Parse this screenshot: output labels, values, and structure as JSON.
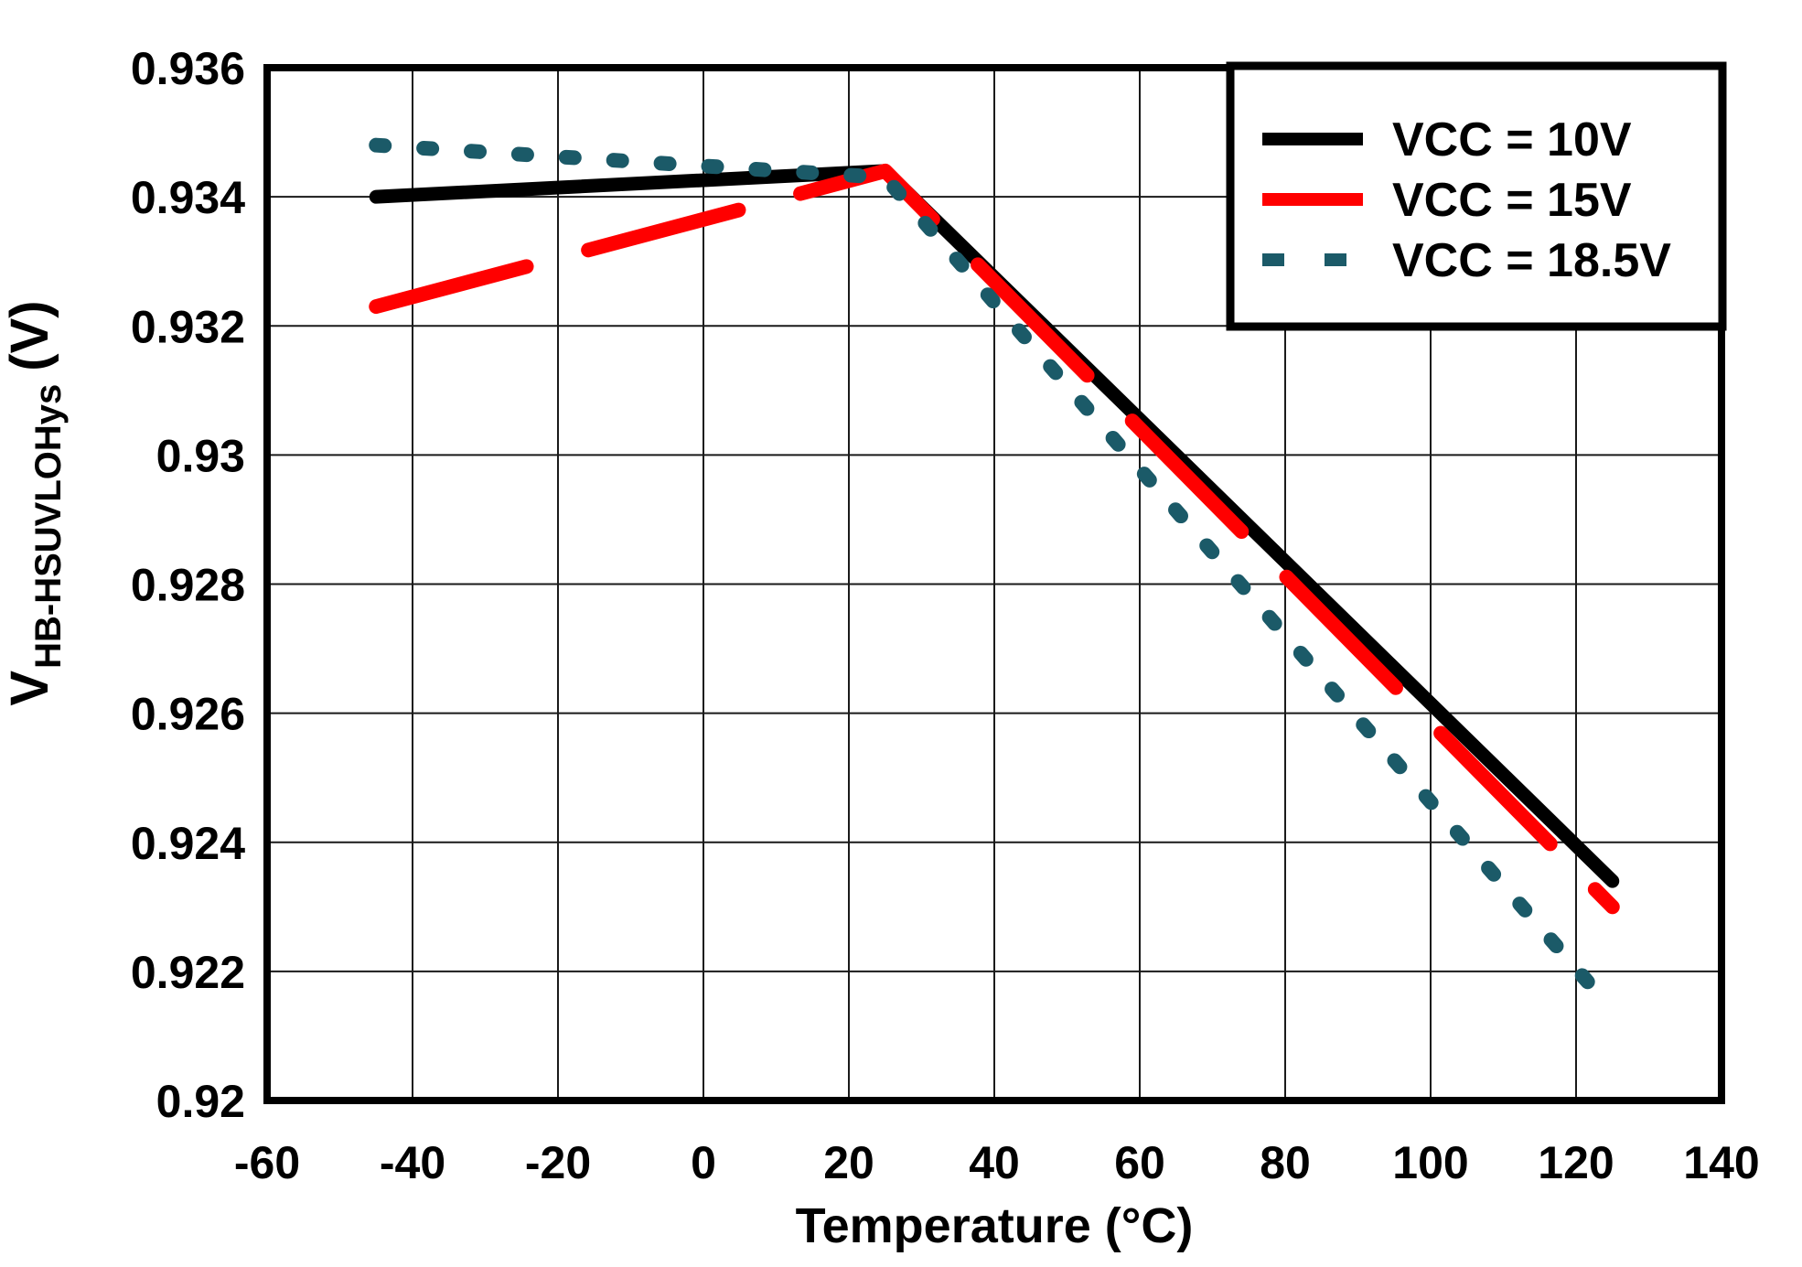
{
  "figure": {
    "background": "#ffffff",
    "frame_color": "#000000",
    "grid_color": "#1a1a1a"
  },
  "chart_data": {
    "type": "line",
    "title": "",
    "xlabel": "Temperature (°C)",
    "ylabel": {
      "symbol": "V",
      "subscript": "HB-HSUVLOHys",
      "unit": "(V)"
    },
    "xlim": [
      -60,
      140
    ],
    "ylim": [
      0.92,
      0.936
    ],
    "grid": true,
    "legend_position": "top-right",
    "x_ticks": [
      {
        "v": -60,
        "label": "-60"
      },
      {
        "v": -40,
        "label": "-40"
      },
      {
        "v": -20,
        "label": "-20"
      },
      {
        "v": 0,
        "label": "0"
      },
      {
        "v": 20,
        "label": "20"
      },
      {
        "v": 40,
        "label": "40"
      },
      {
        "v": 60,
        "label": "60"
      },
      {
        "v": 80,
        "label": "80"
      },
      {
        "v": 100,
        "label": "100"
      },
      {
        "v": 120,
        "label": "120"
      },
      {
        "v": 140,
        "label": "140"
      }
    ],
    "y_ticks": [
      {
        "v": 0.92,
        "label": "0.92"
      },
      {
        "v": 0.922,
        "label": "0.922"
      },
      {
        "v": 0.924,
        "label": "0.924"
      },
      {
        "v": 0.926,
        "label": "0.926"
      },
      {
        "v": 0.928,
        "label": "0.928"
      },
      {
        "v": 0.93,
        "label": "0.93"
      },
      {
        "v": 0.932,
        "label": "0.932"
      },
      {
        "v": 0.934,
        "label": "0.934"
      },
      {
        "v": 0.936,
        "label": "0.936"
      }
    ],
    "series": [
      {
        "name": "VCC = 10V",
        "color": "#000000",
        "line_style": "solid",
        "points": [
          [
            -45,
            0.934
          ],
          [
            25,
            0.9344
          ],
          [
            125,
            0.9234
          ]
        ]
      },
      {
        "name": "VCC = 15V",
        "color": "#ff0000",
        "line_style": "long-dash",
        "points": [
          [
            -45,
            0.9323
          ],
          [
            25,
            0.9344
          ],
          [
            125,
            0.923
          ]
        ]
      },
      {
        "name": "VCC = 18.5V",
        "color": "#1b5a68",
        "line_style": "dot",
        "points": [
          [
            -45,
            0.9348
          ],
          [
            25,
            0.9343
          ],
          [
            125,
            0.9214
          ]
        ]
      }
    ]
  }
}
